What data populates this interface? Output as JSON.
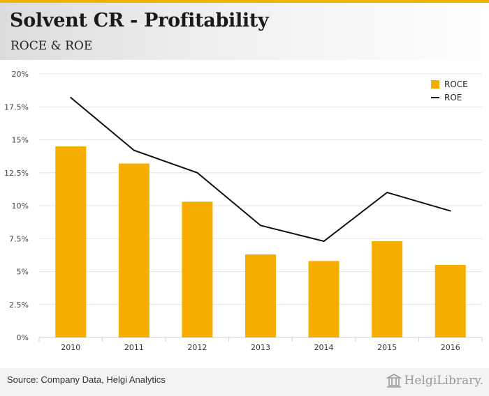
{
  "header": {
    "title": "Solvent CR - Profitability",
    "subtitle": "ROCE & ROE"
  },
  "colors": {
    "roce": "#f5ae00",
    "roe": "#111111",
    "accent": "#f2b200",
    "grid": "#e6e6e6"
  },
  "chart_data": {
    "type": "bar",
    "title": "Solvent CR - Profitability",
    "subtitle": "ROCE & ROE",
    "categories": [
      "2010",
      "2011",
      "2012",
      "2013",
      "2014",
      "2015",
      "2016"
    ],
    "series": [
      {
        "name": "ROCE",
        "kind": "bar",
        "values": [
          14.5,
          13.2,
          10.3,
          6.3,
          5.8,
          7.3,
          5.5
        ]
      },
      {
        "name": "ROE",
        "kind": "line",
        "values": [
          18.2,
          14.2,
          12.5,
          8.5,
          7.3,
          11.0,
          9.6
        ]
      }
    ],
    "yticks": [
      "0%",
      "2.5%",
      "5%",
      "7.5%",
      "10%",
      "12.5%",
      "15%",
      "17.5%",
      "20%"
    ],
    "ylim": [
      0,
      20
    ],
    "xlabel": "",
    "ylabel": "",
    "legend": [
      "ROCE",
      "ROE"
    ],
    "legend_position": "top-right",
    "grid": true
  },
  "footer": {
    "source": "Source: Company Data, Helgi Analytics",
    "logo_text": "HelgiLibrary."
  }
}
